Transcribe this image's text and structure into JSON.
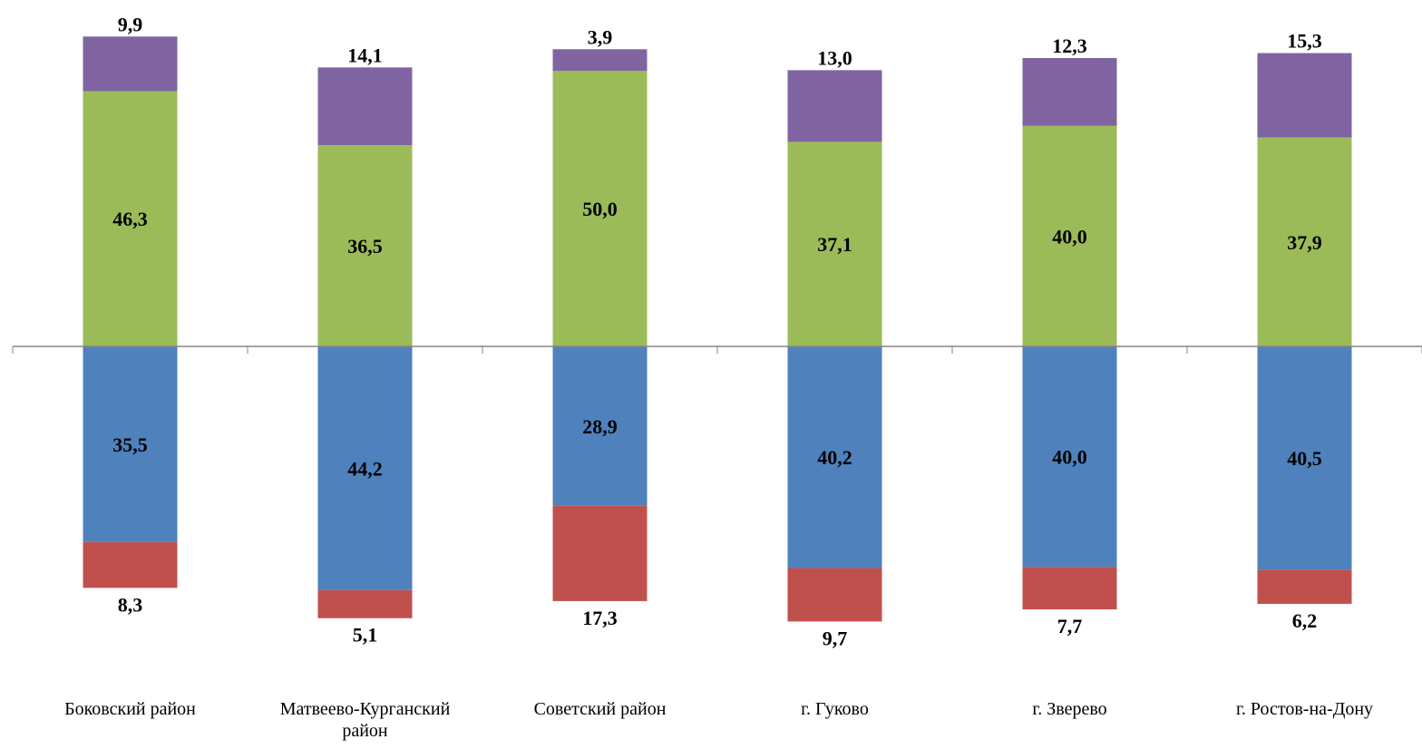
{
  "chart_data": {
    "type": "bar",
    "stacked": "diverging",
    "categories": [
      "Боковский район",
      "Матвеево-Курганский район",
      "Советский район",
      "г. Гуково",
      "г. Зверево",
      "г. Ростов-на-Дону"
    ],
    "category_labels": [
      "Боковский  район",
      "Матвеево-Курганский район",
      "Советский  район",
      "г. Гуково",
      "г. Зверево",
      "г. Ростов-на-Дону"
    ],
    "series": [
      {
        "direction": "up",
        "color": "#9BBB59",
        "values": [
          46.3,
          36.5,
          50.0,
          37.1,
          40.0,
          37.9
        ],
        "labels": [
          "46,3",
          "36,5",
          "50,0",
          "37,1",
          "40,0",
          "37,9"
        ]
      },
      {
        "direction": "up",
        "color": "#8064A2",
        "values": [
          9.9,
          14.1,
          3.9,
          13.0,
          12.3,
          15.3
        ],
        "labels": [
          "9,9",
          "14,1",
          "3,9",
          "13,0",
          "12,3",
          "15,3"
        ]
      },
      {
        "direction": "down",
        "color": "#4F81BD",
        "values": [
          35.5,
          44.2,
          28.9,
          40.2,
          40.0,
          40.5
        ],
        "labels": [
          "35,5",
          "44,2",
          "28,9",
          "40,2",
          "40,0",
          "40,5"
        ]
      },
      {
        "direction": "down",
        "color": "#C0504D",
        "values": [
          8.3,
          5.1,
          17.3,
          9.7,
          7.7,
          6.2
        ],
        "labels": [
          "8,3",
          "5,1",
          "17,3",
          "9,7",
          "7,7",
          "6,2"
        ]
      }
    ],
    "axis_color": "#868686",
    "grid": false,
    "legend": "none"
  }
}
